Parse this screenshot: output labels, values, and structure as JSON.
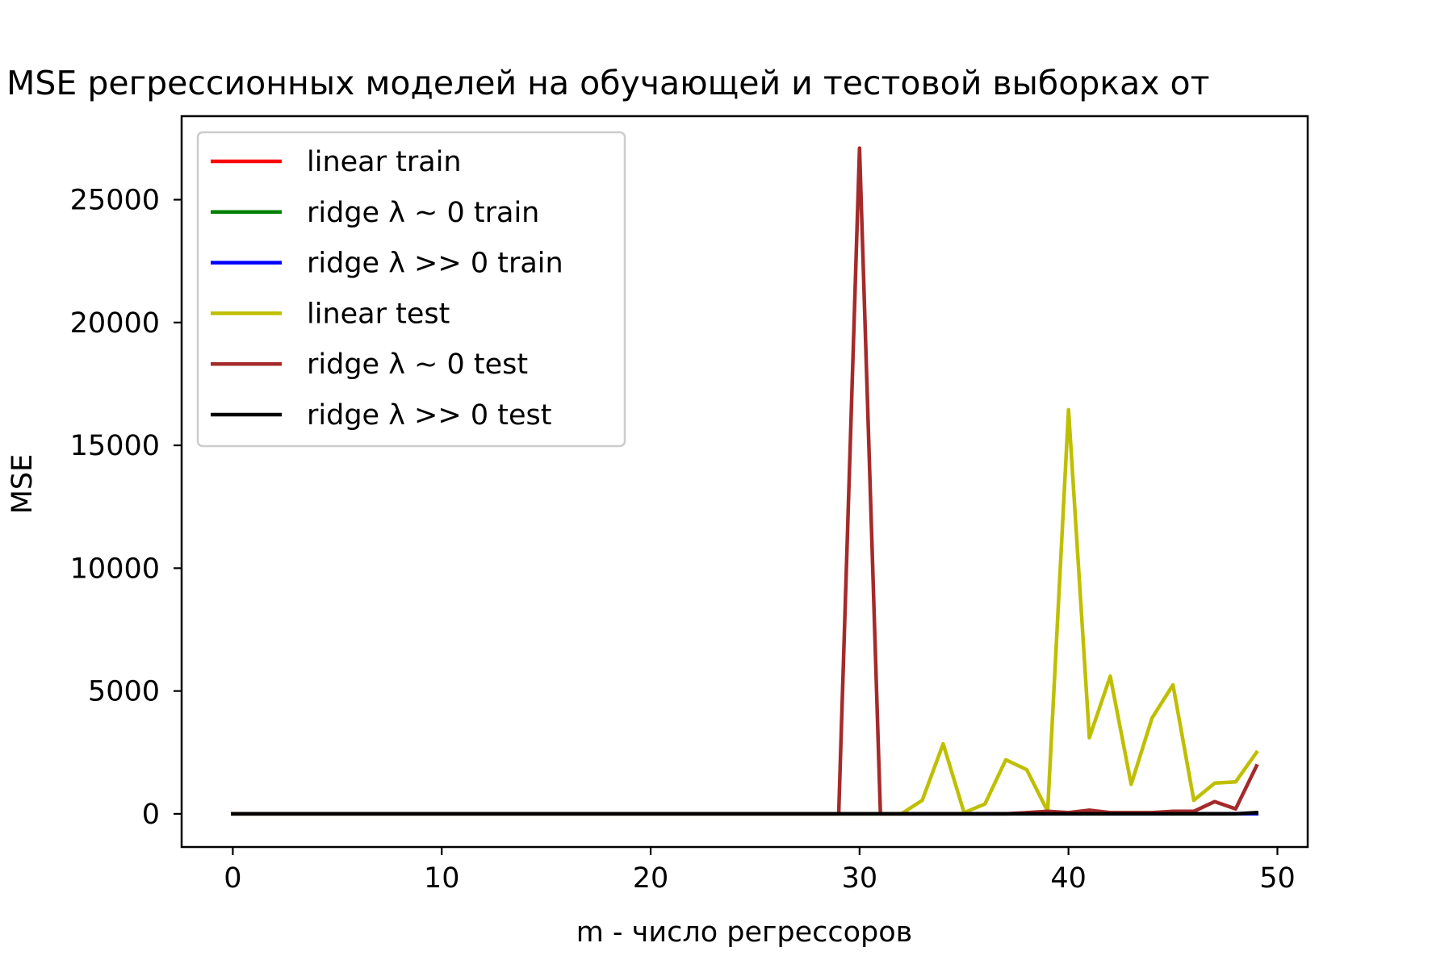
{
  "chart_data": {
    "type": "line",
    "title": "MSE регрессионных моделей на обучающей и тестовой выборках от",
    "xlabel": "m - число регрессоров",
    "ylabel": "MSE",
    "xlim": [
      -2.45,
      51.45
    ],
    "ylim": [
      -1350,
      28400
    ],
    "xticks": [
      0,
      10,
      20,
      30,
      40,
      50
    ],
    "yticks": [
      0,
      5000,
      10000,
      15000,
      20000,
      25000
    ],
    "grid": false,
    "legend_position": "upper-left",
    "x": [
      0,
      1,
      2,
      3,
      4,
      5,
      6,
      7,
      8,
      9,
      10,
      11,
      12,
      13,
      14,
      15,
      16,
      17,
      18,
      19,
      20,
      21,
      22,
      23,
      24,
      25,
      26,
      27,
      28,
      29,
      30,
      31,
      32,
      33,
      34,
      35,
      36,
      37,
      38,
      39,
      40,
      41,
      42,
      43,
      44,
      45,
      46,
      47,
      48,
      49
    ],
    "series": [
      {
        "name": "linear train",
        "color": "#ff0000",
        "values": [
          5,
          5,
          5,
          5,
          5,
          5,
          5,
          5,
          5,
          5,
          5,
          5,
          5,
          5,
          5,
          5,
          5,
          5,
          5,
          5,
          5,
          5,
          5,
          5,
          5,
          5,
          5,
          5,
          5,
          5,
          5,
          5,
          5,
          5,
          5,
          5,
          5,
          5,
          5,
          5,
          5,
          5,
          5,
          5,
          5,
          5,
          5,
          5,
          5,
          5
        ]
      },
      {
        "name": "ridge λ ~ 0 train",
        "color": "#008000",
        "values": [
          5,
          5,
          5,
          5,
          5,
          5,
          5,
          5,
          5,
          5,
          5,
          5,
          5,
          5,
          5,
          5,
          5,
          5,
          5,
          5,
          5,
          5,
          5,
          5,
          5,
          5,
          5,
          5,
          5,
          5,
          5,
          5,
          5,
          5,
          5,
          5,
          5,
          5,
          5,
          5,
          5,
          5,
          5,
          5,
          5,
          5,
          5,
          5,
          5,
          5
        ]
      },
      {
        "name": "ridge λ >> 0 train",
        "color": "#0000ff",
        "values": [
          5,
          5,
          5,
          5,
          5,
          5,
          5,
          5,
          5,
          5,
          5,
          5,
          5,
          5,
          5,
          5,
          5,
          5,
          5,
          5,
          5,
          5,
          5,
          5,
          5,
          5,
          5,
          5,
          5,
          5,
          5,
          5,
          5,
          5,
          5,
          5,
          5,
          5,
          5,
          5,
          5,
          5,
          5,
          5,
          5,
          5,
          5,
          5,
          5,
          5
        ]
      },
      {
        "name": "linear test",
        "color": "#bfbf00",
        "values": [
          0,
          0,
          0,
          0,
          0,
          0,
          0,
          0,
          0,
          0,
          0,
          0,
          0,
          0,
          0,
          0,
          0,
          0,
          0,
          0,
          0,
          0,
          0,
          0,
          0,
          0,
          0,
          0,
          0,
          0,
          0,
          0,
          0,
          550,
          2850,
          50,
          400,
          2200,
          1800,
          100,
          16450,
          3100,
          5600,
          1200,
          3900,
          5250,
          550,
          1250,
          1300,
          2500
        ]
      },
      {
        "name": "ridge λ ~ 0 test",
        "color": "#a52a2a",
        "values": [
          0,
          0,
          0,
          0,
          0,
          0,
          0,
          0,
          0,
          0,
          0,
          0,
          0,
          0,
          0,
          0,
          0,
          0,
          0,
          0,
          0,
          0,
          0,
          0,
          0,
          0,
          0,
          0,
          0,
          0,
          27100,
          0,
          0,
          0,
          0,
          0,
          0,
          0,
          50,
          100,
          50,
          150,
          50,
          50,
          50,
          100,
          100,
          500,
          200,
          1950
        ]
      },
      {
        "name": "ridge λ >> 0 test",
        "color": "#000000",
        "values": [
          0,
          0,
          0,
          0,
          0,
          0,
          0,
          0,
          0,
          0,
          0,
          0,
          0,
          0,
          0,
          0,
          0,
          0,
          0,
          0,
          0,
          0,
          0,
          0,
          0,
          0,
          0,
          0,
          0,
          0,
          0,
          0,
          0,
          0,
          0,
          0,
          0,
          0,
          0,
          0,
          0,
          0,
          0,
          0,
          0,
          0,
          0,
          0,
          0,
          50
        ]
      }
    ]
  }
}
